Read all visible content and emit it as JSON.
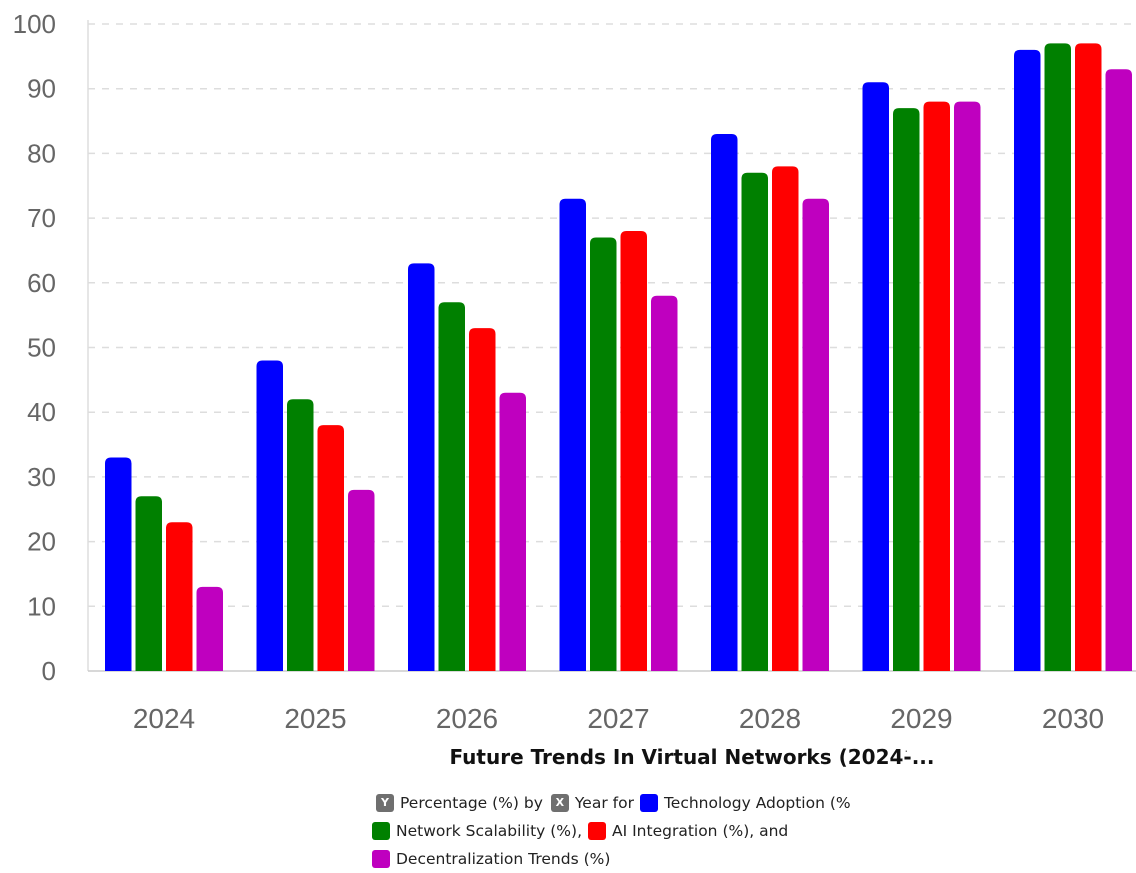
{
  "chart_data": {
    "type": "bar",
    "title": "Future Trends In Virtual Networks (2024-...",
    "categories": [
      "2024",
      "2025",
      "2026",
      "2027",
      "2028",
      "2029",
      "2030"
    ],
    "ylim": [
      0,
      100
    ],
    "yticks": [
      0,
      10,
      20,
      30,
      40,
      50,
      60,
      70,
      80,
      90,
      100
    ],
    "grid": true,
    "series": [
      {
        "name": "Technology Adoption (%",
        "color": "#0000ff",
        "values": [
          33,
          48,
          63,
          73,
          83,
          91,
          96
        ]
      },
      {
        "name": "Network Scalability (%)",
        "color": "#008000",
        "values": [
          27,
          42,
          57,
          67,
          77,
          87,
          97
        ]
      },
      {
        "name": "AI Integration (%)",
        "color": "#ff0000",
        "values": [
          23,
          38,
          53,
          68,
          78,
          88,
          97
        ]
      },
      {
        "name": "Decentralization Trends (%)",
        "color": "#bf00bf",
        "values": [
          13,
          28,
          43,
          58,
          73,
          88,
          93
        ]
      }
    ]
  },
  "caption": {
    "y_badge": "Y",
    "y_text": "Percentage (%) by",
    "x_badge": "X",
    "x_text": "Year for",
    "s1_text": "Technology Adoption (%",
    "s2_text": "Network Scalability (%),",
    "s3_text": "AI Integration (%), and",
    "s4_text": "Decentralization Trends (%)"
  },
  "title_mark": "·"
}
